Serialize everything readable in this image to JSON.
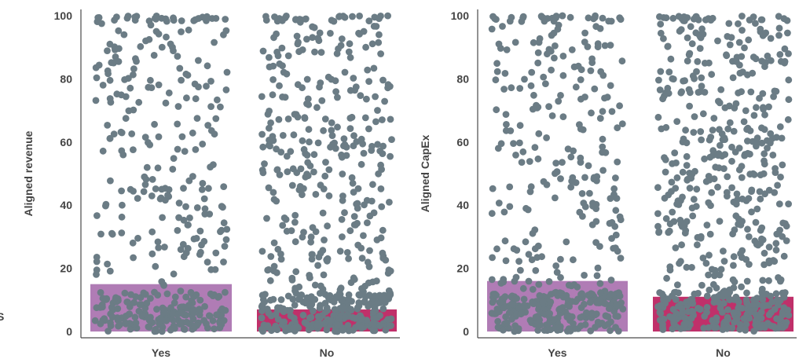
{
  "clipped_left_label": "S",
  "chart_data": [
    {
      "type": "bar",
      "overlay": "jittered scatter points",
      "title": "",
      "xlabel": "",
      "ylabel": "Aligned revenue",
      "ylim": [
        0,
        100
      ],
      "yticks": [
        0,
        20,
        40,
        60,
        80,
        100
      ],
      "categories": [
        "Yes",
        "No"
      ],
      "values": [
        15,
        7
      ],
      "bar_colors": [
        "#b07cb5",
        "#c0306a"
      ],
      "point_color": "#6b7c85",
      "points_per_category": [
        420,
        560
      ],
      "point_low_cluster_share": [
        0.35,
        0.3
      ],
      "point_bunch_at_100_share": [
        0.05,
        0.04
      ],
      "grid": false,
      "legend": "none"
    },
    {
      "type": "bar",
      "overlay": "jittered scatter points",
      "title": "",
      "xlabel": "",
      "ylabel": "Aligned  CapEx",
      "ylim": [
        0,
        100
      ],
      "yticks": [
        0,
        20,
        40,
        60,
        80,
        100
      ],
      "categories": [
        "Yes",
        "No"
      ],
      "values": [
        16,
        11
      ],
      "bar_colors": [
        "#b07cb5",
        "#c0306a"
      ],
      "point_color": "#6b7c85",
      "points_per_category": [
        470,
        600
      ],
      "point_low_cluster_share": [
        0.35,
        0.25
      ],
      "point_bunch_at_100_share": [
        0.07,
        0.04
      ],
      "grid": false,
      "legend": "none"
    }
  ]
}
